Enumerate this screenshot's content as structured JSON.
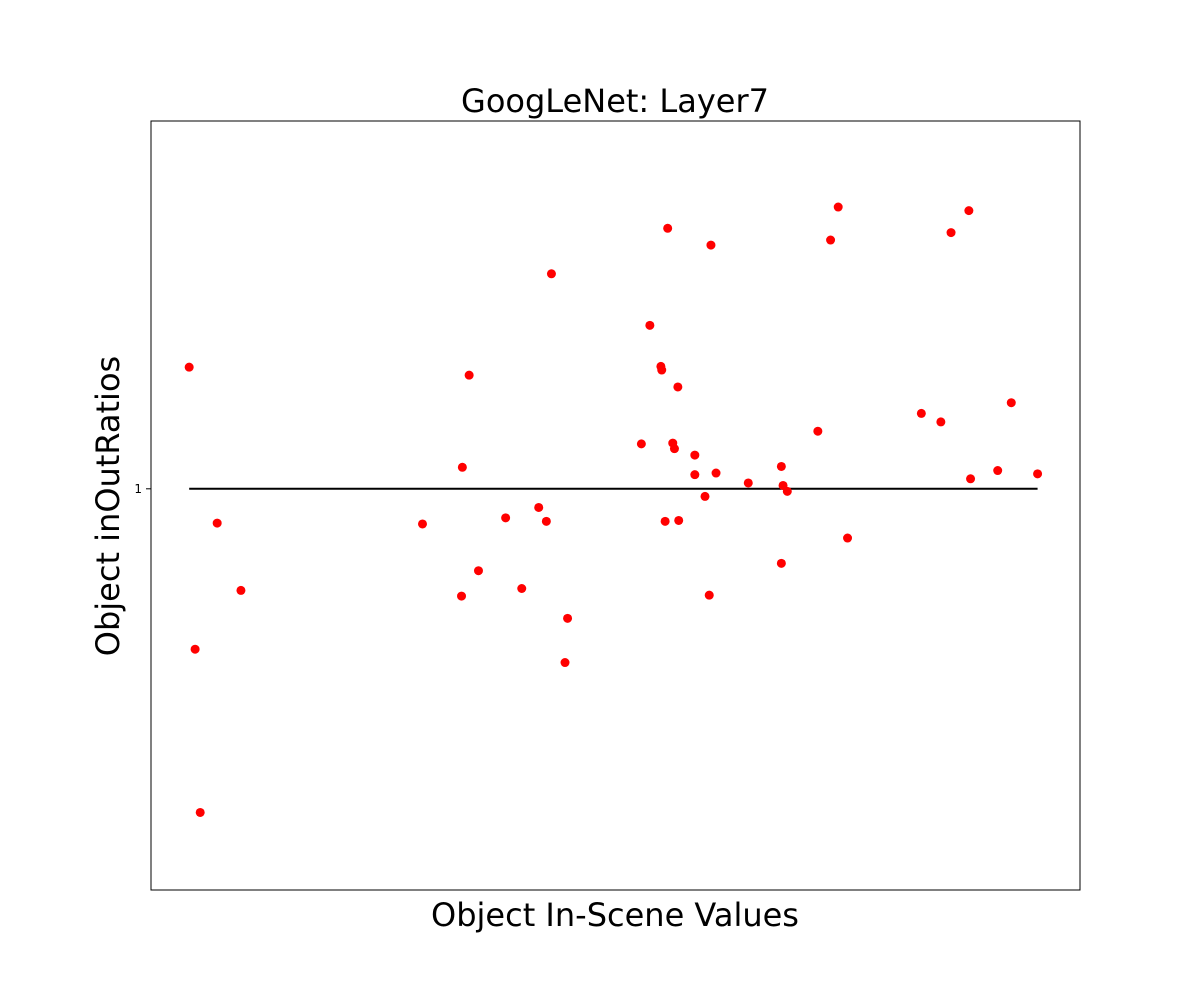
{
  "chart_data": {
    "type": "scatter",
    "title": "GoogLeNet: Layer7",
    "xlabel": "Object In-Scene Values",
    "ylabel": "Object inOutRatios",
    "y_scale": "log",
    "y_ticks": [
      {
        "value": 1,
        "label": "1"
      }
    ],
    "xlim": [
      -0.045,
      1.05
    ],
    "ylim": [
      0.62,
      1.55
    ],
    "grid": false,
    "legend": "none",
    "reference_line": {
      "y": 1,
      "x_from": 0,
      "x_to": 1,
      "color": "#000000"
    },
    "marker_color": "#ff0000",
    "series": [
      {
        "points": [
          {
            "x": 0.0,
            "y": 1.156
          },
          {
            "x": 0.007,
            "y": 0.826
          },
          {
            "x": 0.013,
            "y": 0.68
          },
          {
            "x": 0.033,
            "y": 0.96
          },
          {
            "x": 0.061,
            "y": 0.886
          },
          {
            "x": 0.275,
            "y": 0.959
          },
          {
            "x": 0.321,
            "y": 0.88
          },
          {
            "x": 0.322,
            "y": 1.026
          },
          {
            "x": 0.33,
            "y": 1.145
          },
          {
            "x": 0.341,
            "y": 0.907
          },
          {
            "x": 0.373,
            "y": 0.966
          },
          {
            "x": 0.392,
            "y": 0.888
          },
          {
            "x": 0.412,
            "y": 0.978
          },
          {
            "x": 0.421,
            "y": 0.962
          },
          {
            "x": 0.427,
            "y": 1.292
          },
          {
            "x": 0.443,
            "y": 0.813
          },
          {
            "x": 0.446,
            "y": 0.857
          },
          {
            "x": 0.533,
            "y": 1.055
          },
          {
            "x": 0.543,
            "y": 1.215
          },
          {
            "x": 0.556,
            "y": 1.157
          },
          {
            "x": 0.557,
            "y": 1.152
          },
          {
            "x": 0.561,
            "y": 0.962
          },
          {
            "x": 0.564,
            "y": 1.364
          },
          {
            "x": 0.57,
            "y": 1.056
          },
          {
            "x": 0.572,
            "y": 1.049
          },
          {
            "x": 0.576,
            "y": 1.129
          },
          {
            "x": 0.577,
            "y": 0.963
          },
          {
            "x": 0.596,
            "y": 1.017
          },
          {
            "x": 0.596,
            "y": 1.041
          },
          {
            "x": 0.608,
            "y": 0.991
          },
          {
            "x": 0.613,
            "y": 0.881
          },
          {
            "x": 0.615,
            "y": 1.337
          },
          {
            "x": 0.621,
            "y": 1.019
          },
          {
            "x": 0.659,
            "y": 1.007
          },
          {
            "x": 0.698,
            "y": 0.915
          },
          {
            "x": 0.698,
            "y": 1.027
          },
          {
            "x": 0.7,
            "y": 1.004
          },
          {
            "x": 0.705,
            "y": 0.997
          },
          {
            "x": 0.741,
            "y": 1.071
          },
          {
            "x": 0.756,
            "y": 1.345
          },
          {
            "x": 0.765,
            "y": 1.399
          },
          {
            "x": 0.776,
            "y": 0.943
          },
          {
            "x": 0.863,
            "y": 1.094
          },
          {
            "x": 0.886,
            "y": 1.083
          },
          {
            "x": 0.898,
            "y": 1.357
          },
          {
            "x": 0.919,
            "y": 1.393
          },
          {
            "x": 0.921,
            "y": 1.012
          },
          {
            "x": 0.953,
            "y": 1.022
          },
          {
            "x": 0.969,
            "y": 1.108
          },
          {
            "x": 1.0,
            "y": 1.018
          }
        ]
      }
    ]
  }
}
